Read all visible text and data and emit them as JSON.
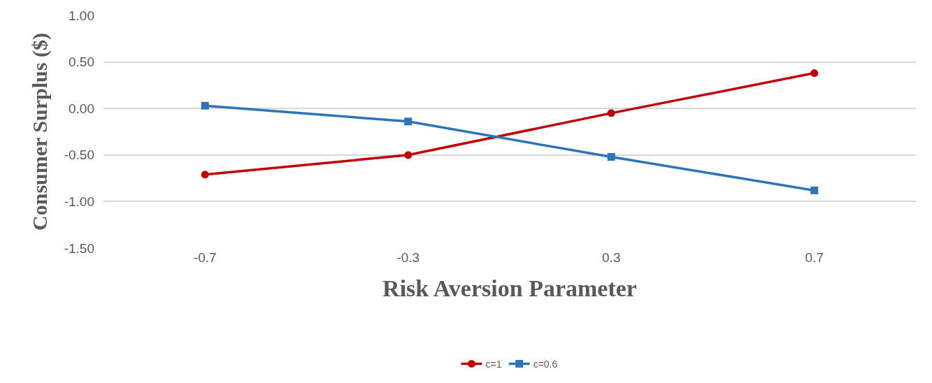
{
  "chart_data": {
    "type": "line",
    "xlabel": "Risk Aversion Parameter",
    "ylabel": "Consumer Surplus ($)",
    "categories": [
      "-0.7",
      "-0.3",
      "0.3",
      "0.7"
    ],
    "series": [
      {
        "name": "c=1",
        "color": "#c00000",
        "values": [
          -0.71,
          -0.5,
          -0.05,
          0.38
        ],
        "marker": "circle"
      },
      {
        "name": "c=0.6",
        "color": "#2e75b6",
        "values": [
          0.03,
          -0.14,
          -0.52,
          -0.88
        ],
        "marker": "square"
      }
    ],
    "ylim": [
      -1.5,
      1.0
    ],
    "yticks": [
      {
        "value": -1.5,
        "label": "-1.50"
      },
      {
        "value": -1.0,
        "label": "-1.00"
      },
      {
        "value": -0.5,
        "label": "-0.50"
      },
      {
        "value": 0,
        "label": "0.00"
      },
      {
        "value": 0.5,
        "label": "0.50"
      },
      {
        "value": 1.0,
        "label": "1.00"
      }
    ],
    "grid": "y",
    "legend": "bottom",
    "line_style": "solid"
  }
}
